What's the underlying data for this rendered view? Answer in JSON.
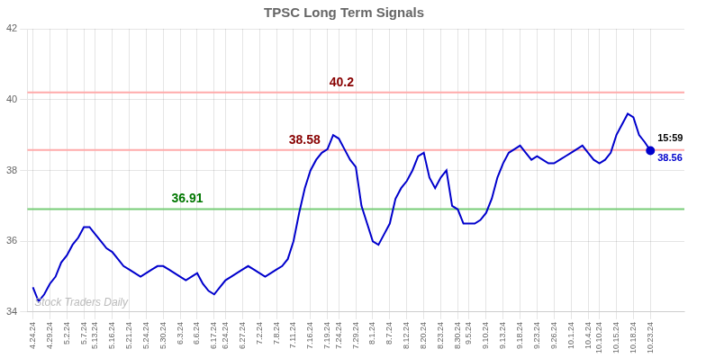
{
  "chart_data": {
    "type": "line",
    "title": "TPSC Long Term Signals",
    "categories": [
      "4.24.24",
      null,
      null,
      "4.29.24",
      null,
      null,
      "5.2.24",
      null,
      null,
      "5.7.24",
      null,
      "5.13.24",
      null,
      null,
      "5.16.24",
      null,
      null,
      "5.21.24",
      null,
      null,
      "5.24.24",
      null,
      null,
      "5.30.24",
      null,
      null,
      "6.3.24",
      null,
      null,
      "6.6.24",
      null,
      null,
      "6.17.24",
      null,
      "6.24.24",
      null,
      null,
      "6.27.24",
      null,
      null,
      "7.2.24",
      null,
      null,
      "7.8.24",
      null,
      null,
      "7.11.24",
      null,
      null,
      "7.16.24",
      null,
      null,
      "7.19.24",
      null,
      "7.24.24",
      null,
      null,
      "7.29.24",
      null,
      null,
      "8.1.24",
      null,
      null,
      "8.7.24",
      null,
      null,
      "8.12.24",
      null,
      null,
      "8.20.24",
      null,
      null,
      "8.23.24",
      null,
      null,
      "8.30.24",
      null,
      "9.5.24",
      null,
      null,
      "9.10.24",
      null,
      null,
      "9.13.24",
      null,
      null,
      "9.18.24",
      null,
      null,
      "9.23.24",
      null,
      null,
      "9.26.24",
      null,
      null,
      "10.1.24",
      null,
      null,
      "10.4.24",
      null,
      "10.10.24",
      null,
      null,
      "10.15.24",
      null,
      null,
      "10.18.24",
      null,
      null,
      "10.23.24"
    ],
    "values": [
      34.7,
      34.3,
      34.5,
      34.8,
      35.0,
      35.4,
      35.6,
      35.9,
      36.1,
      36.4,
      36.4,
      36.2,
      36.0,
      35.8,
      35.7,
      35.5,
      35.3,
      35.2,
      35.1,
      35.0,
      35.1,
      35.2,
      35.3,
      35.3,
      35.2,
      35.1,
      35.0,
      34.9,
      35.0,
      35.1,
      34.8,
      34.6,
      34.5,
      34.7,
      34.9,
      35.0,
      35.1,
      35.2,
      35.3,
      35.2,
      35.1,
      35.0,
      35.1,
      35.2,
      35.3,
      35.5,
      36.0,
      36.8,
      37.5,
      38.0,
      38.3,
      38.5,
      38.6,
      39.0,
      38.9,
      38.6,
      38.3,
      38.1,
      37.0,
      36.5,
      36.0,
      35.9,
      36.2,
      36.5,
      37.2,
      37.5,
      37.7,
      38.0,
      38.4,
      38.5,
      37.8,
      37.5,
      37.8,
      38.0,
      37.0,
      36.9,
      36.5,
      36.5,
      36.5,
      36.6,
      36.8,
      37.2,
      37.8,
      38.2,
      38.5,
      38.6,
      38.7,
      38.5,
      38.3,
      38.4,
      38.3,
      38.2,
      38.2,
      38.3,
      38.4,
      38.5,
      38.6,
      38.7,
      38.5,
      38.3,
      38.2,
      38.3,
      38.5,
      39.0,
      39.3,
      39.6,
      39.5,
      39.0,
      38.8,
      38.56
    ],
    "color": "#0000cc",
    "ylim": [
      34,
      42
    ],
    "yticks": [
      34,
      36,
      38,
      40,
      42
    ],
    "grid": true,
    "reference_lines": [
      {
        "value": 40.2,
        "color": "#ffaaaa",
        "label": "40.2",
        "label_color": "#880000"
      },
      {
        "value": 38.58,
        "color": "#ffaaaa",
        "label": "38.58",
        "label_color": "#880000"
      },
      {
        "value": 36.91,
        "color": "#77cc77",
        "label": "36.91",
        "label_color": "#007700"
      }
    ],
    "end_labels": [
      {
        "text": "15:59",
        "color": "#000000"
      },
      {
        "text": "38.56",
        "color": "#0000cc"
      }
    ],
    "watermark": {
      "text": "Stock Traders Daily",
      "color": "#bbbbbb"
    }
  }
}
